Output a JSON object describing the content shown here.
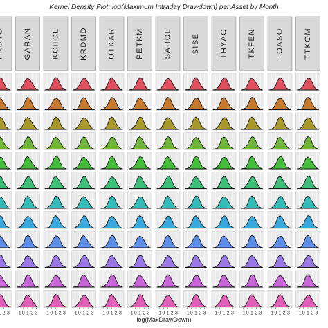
{
  "chart_data": {
    "type": "area",
    "title": "Kernel Density Plot: log(Maximum Intraday Drawdown) per Asset by Month",
    "xlabel": "log(MaxDrawDown)",
    "ylabel": "",
    "assets": [
      "FROTO",
      "GARAN",
      "KCHOL",
      "KRDMD",
      "OTKAR",
      "PETKM",
      "SAHOL",
      "SISE",
      "THYAO",
      "TKFEN",
      "TOASO",
      "TTKOM"
    ],
    "x_ticks": [
      "-1",
      "0",
      "1",
      "2",
      "3"
    ],
    "xlim": [
      -1.5,
      3.5
    ],
    "rows": 12,
    "grid": true,
    "row_colors": [
      "#e0505e",
      "#c8792e",
      "#a89a2a",
      "#6fb63a",
      "#44be3a",
      "#3dbf7a",
      "#35bcb8",
      "#3aa8dc",
      "#5c8ee8",
      "#9a78e6",
      "#c868d8",
      "#e060b8"
    ],
    "density_shape": {
      "x": [
        -1.5,
        -1.0,
        -0.5,
        0.0,
        0.5,
        1.0,
        1.5,
        2.0,
        2.5,
        3.0,
        3.5
      ],
      "y": [
        0.0,
        0.03,
        0.12,
        0.38,
        0.8,
        1.0,
        0.88,
        0.55,
        0.22,
        0.06,
        0.0
      ]
    }
  }
}
